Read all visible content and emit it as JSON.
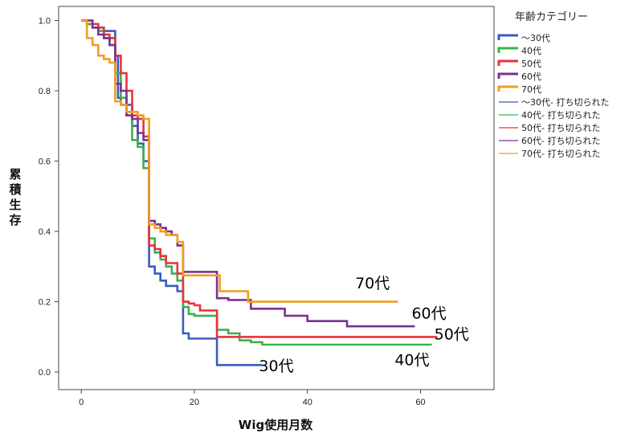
{
  "chart_data": {
    "type": "line",
    "step": true,
    "xlabel": "Wig使用月数",
    "ylabel": "累積生存",
    "xlim": [
      -4,
      73
    ],
    "ylim": [
      -0.05,
      1.04
    ],
    "x_ticks": [
      0,
      20,
      40,
      60
    ],
    "y_ticks": [
      0.0,
      0.2,
      0.4,
      0.6,
      0.8,
      1.0
    ],
    "y_tick_labels": [
      "0.0",
      "0.2",
      "0.4",
      "0.6",
      "0.8",
      "1.0"
    ],
    "grid": false,
    "legend": {
      "title": "年齢カテゴリー",
      "placement": "right",
      "entries": [
        {
          "label": "～30代",
          "color": "#3a5bbf",
          "style": "thick"
        },
        {
          "label": "40代",
          "color": "#3ab24a",
          "style": "thick"
        },
        {
          "label": "50代",
          "color": "#e8323c",
          "style": "thick"
        },
        {
          "label": "60代",
          "color": "#7b3294",
          "style": "thick"
        },
        {
          "label": "70代",
          "color": "#f39c1e",
          "style": "thick"
        },
        {
          "label": "～30代- 打ち切られた",
          "color": "#3a5bbf",
          "style": "thin"
        },
        {
          "label": "40代- 打ち切られた",
          "color": "#3ab24a",
          "style": "thin"
        },
        {
          "label": "50代- 打ち切られた",
          "color": "#e8323c",
          "style": "thin"
        },
        {
          "label": "60代- 打ち切られた",
          "color": "#7b3294",
          "style": "thin"
        },
        {
          "label": "70代- 打ち切られた",
          "color": "#f39c1e",
          "style": "thin"
        }
      ]
    },
    "series": [
      {
        "name": "～30代",
        "color": "#3a5bbf",
        "points": [
          [
            0,
            1.0
          ],
          [
            1,
            0.99
          ],
          [
            2,
            0.98
          ],
          [
            4,
            0.97
          ],
          [
            6,
            0.9
          ],
          [
            6.5,
            0.78
          ],
          [
            7,
            0.76
          ],
          [
            9,
            0.7
          ],
          [
            10,
            0.65
          ],
          [
            11,
            0.6
          ],
          [
            12,
            0.3
          ],
          [
            13,
            0.28
          ],
          [
            14,
            0.26
          ],
          [
            15,
            0.245
          ],
          [
            17,
            0.23
          ],
          [
            18,
            0.11
          ],
          [
            19,
            0.095
          ],
          [
            22,
            0.095
          ],
          [
            24,
            0.02
          ],
          [
            32,
            0.02
          ]
        ]
      },
      {
        "name": "40代",
        "color": "#3ab24a",
        "points": [
          [
            0,
            1.0
          ],
          [
            1,
            0.99
          ],
          [
            2,
            0.98
          ],
          [
            3,
            0.97
          ],
          [
            4,
            0.95
          ],
          [
            5,
            0.93
          ],
          [
            6,
            0.85
          ],
          [
            7,
            0.78
          ],
          [
            8,
            0.73
          ],
          [
            9,
            0.66
          ],
          [
            10,
            0.64
          ],
          [
            11,
            0.58
          ],
          [
            12,
            0.38
          ],
          [
            13,
            0.34
          ],
          [
            14,
            0.32
          ],
          [
            15,
            0.3
          ],
          [
            16,
            0.28
          ],
          [
            17,
            0.26
          ],
          [
            18,
            0.185
          ],
          [
            19,
            0.165
          ],
          [
            20,
            0.16
          ],
          [
            24,
            0.12
          ],
          [
            26,
            0.11
          ],
          [
            28,
            0.09
          ],
          [
            30,
            0.085
          ],
          [
            32,
            0.078
          ],
          [
            62,
            0.078
          ]
        ]
      },
      {
        "name": "50代",
        "color": "#e8323c",
        "points": [
          [
            0,
            1.0
          ],
          [
            2,
            0.99
          ],
          [
            3,
            0.98
          ],
          [
            4,
            0.96
          ],
          [
            5,
            0.95
          ],
          [
            6,
            0.9
          ],
          [
            7,
            0.85
          ],
          [
            8,
            0.8
          ],
          [
            9,
            0.73
          ],
          [
            10,
            0.72
          ],
          [
            11,
            0.67
          ],
          [
            12,
            0.36
          ],
          [
            13,
            0.35
          ],
          [
            14,
            0.33
          ],
          [
            15,
            0.31
          ],
          [
            17,
            0.28
          ],
          [
            18,
            0.2
          ],
          [
            19,
            0.195
          ],
          [
            20,
            0.19
          ],
          [
            21,
            0.175
          ],
          [
            24,
            0.1
          ],
          [
            63,
            0.1
          ]
        ]
      },
      {
        "name": "60代",
        "color": "#7b3294",
        "points": [
          [
            0,
            1.0
          ],
          [
            2,
            0.98
          ],
          [
            3,
            0.96
          ],
          [
            4,
            0.95
          ],
          [
            5,
            0.93
          ],
          [
            6,
            0.82
          ],
          [
            7,
            0.8
          ],
          [
            8,
            0.73
          ],
          [
            9,
            0.72
          ],
          [
            10,
            0.68
          ],
          [
            11,
            0.66
          ],
          [
            12,
            0.43
          ],
          [
            13,
            0.42
          ],
          [
            14,
            0.41
          ],
          [
            15,
            0.4
          ],
          [
            16,
            0.39
          ],
          [
            17,
            0.36
          ],
          [
            18,
            0.285
          ],
          [
            22,
            0.285
          ],
          [
            24,
            0.21
          ],
          [
            26,
            0.205
          ],
          [
            30,
            0.18
          ],
          [
            36,
            0.16
          ],
          [
            40,
            0.145
          ],
          [
            47,
            0.13
          ],
          [
            59,
            0.13
          ]
        ]
      },
      {
        "name": "70代",
        "color": "#f39c1e",
        "points": [
          [
            0,
            1.0
          ],
          [
            1,
            0.95
          ],
          [
            2,
            0.93
          ],
          [
            3,
            0.9
          ],
          [
            4,
            0.89
          ],
          [
            5,
            0.88
          ],
          [
            6,
            0.77
          ],
          [
            7,
            0.76
          ],
          [
            8,
            0.74
          ],
          [
            10,
            0.73
          ],
          [
            11,
            0.72
          ],
          [
            12,
            0.42
          ],
          [
            13,
            0.41
          ],
          [
            14,
            0.4
          ],
          [
            15,
            0.39
          ],
          [
            17,
            0.37
          ],
          [
            18,
            0.275
          ],
          [
            24,
            0.275
          ],
          [
            24.5,
            0.23
          ],
          [
            29,
            0.23
          ],
          [
            29.5,
            0.2
          ],
          [
            56,
            0.2
          ]
        ]
      }
    ],
    "annotations": [
      {
        "text": "70代",
        "x": 51.5,
        "y": 0.238
      },
      {
        "text": "60代",
        "x": 61.5,
        "y": 0.152
      },
      {
        "text": "50代",
        "x": 65.5,
        "y": 0.093
      },
      {
        "text": "40代",
        "x": 58.5,
        "y": 0.02
      },
      {
        "text": "30代",
        "x": 34.5,
        "y": 0.003
      }
    ]
  }
}
